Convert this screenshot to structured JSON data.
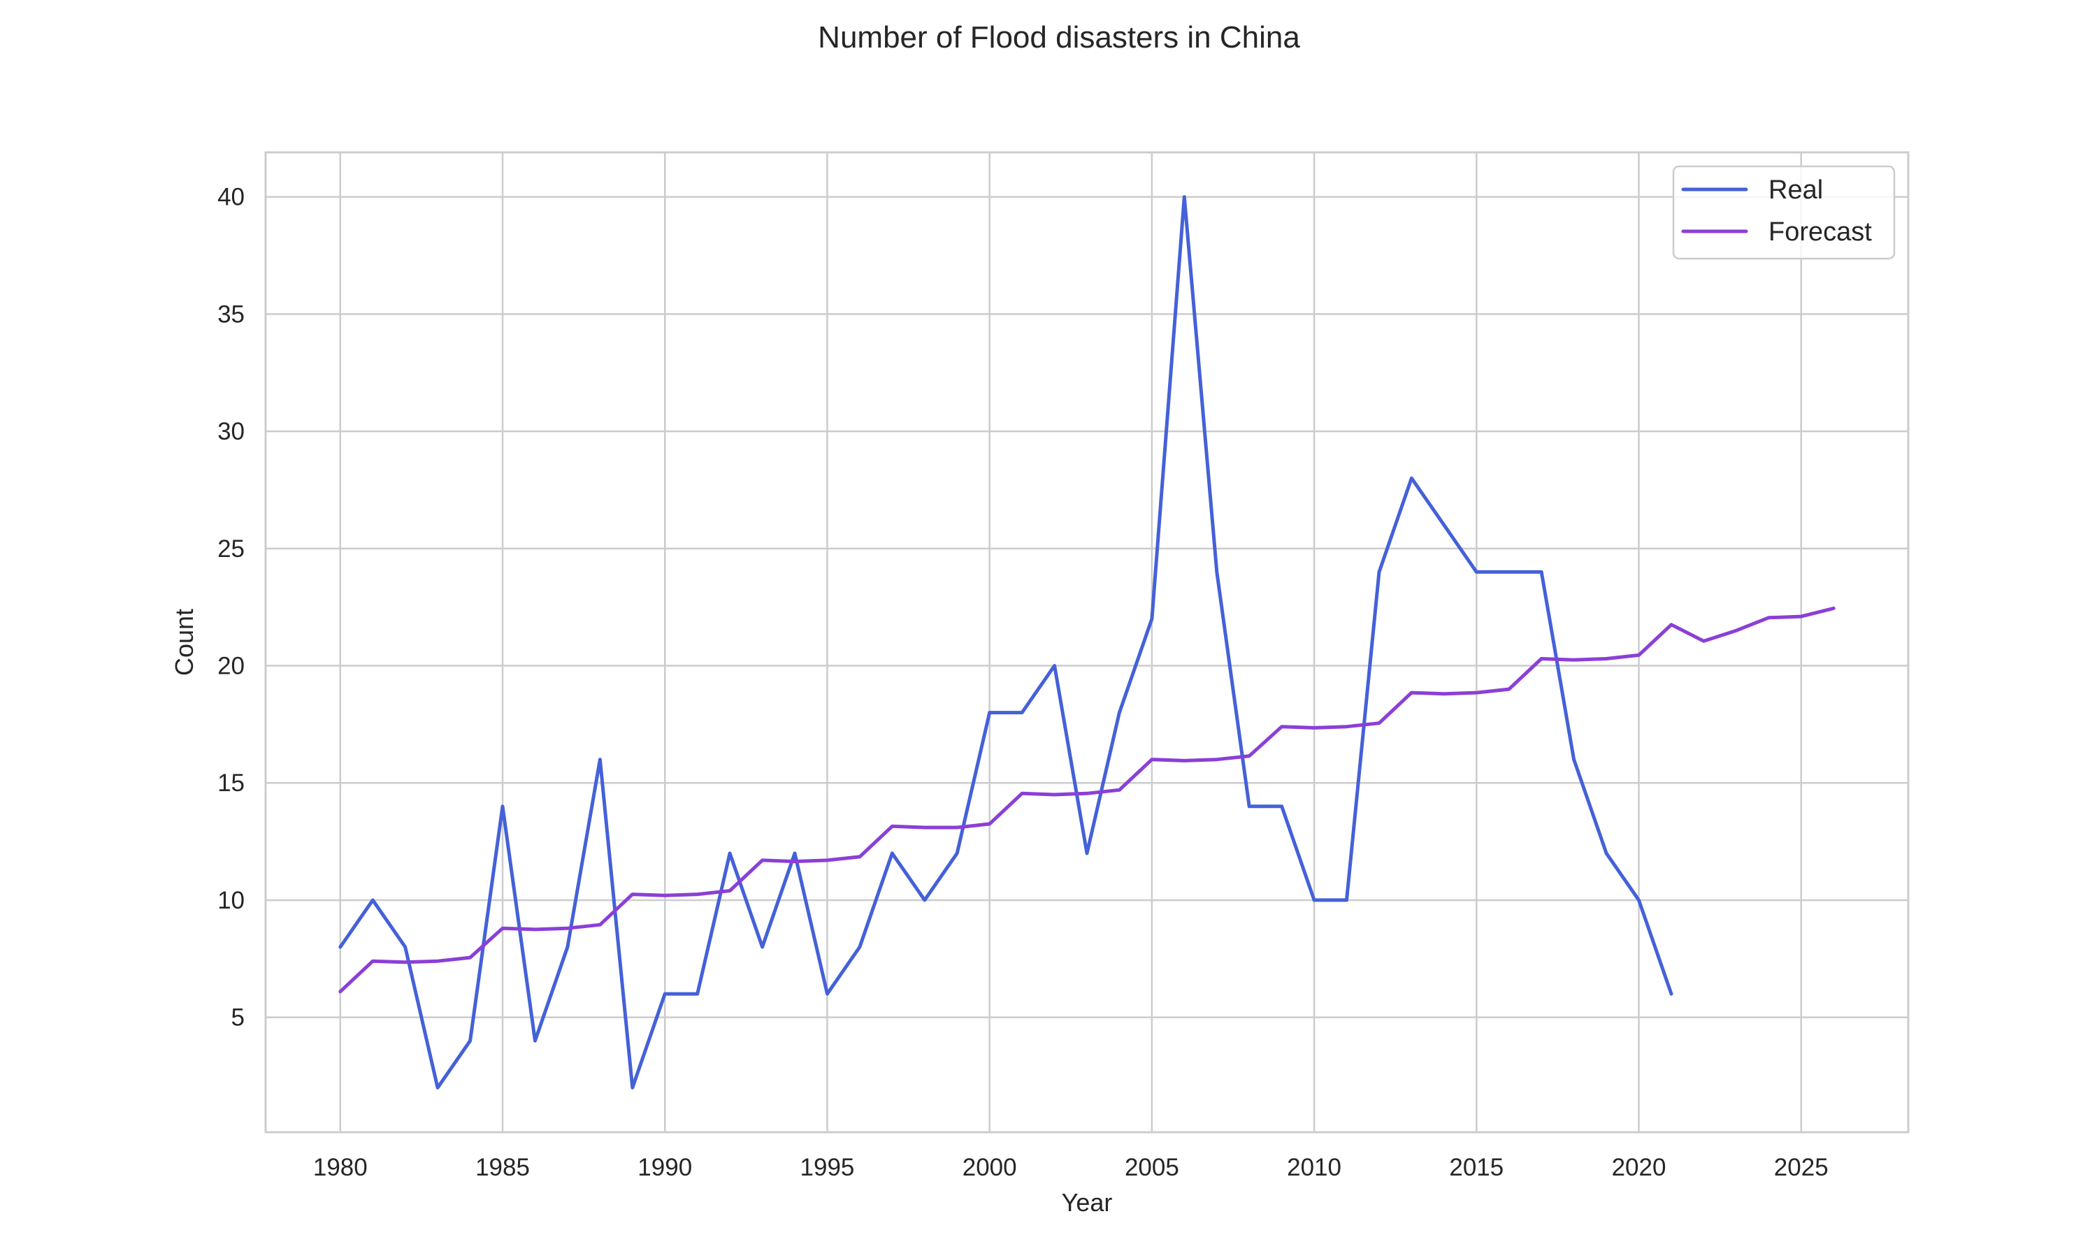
{
  "chart_data": {
    "type": "line",
    "title": "Number of Flood disasters in China",
    "xlabel": "Year",
    "ylabel": "Count",
    "xlim": [
      1977.7,
      2028.3
    ],
    "ylim": [
      0.1,
      41.9
    ],
    "xticks": [
      1980,
      1985,
      1990,
      1995,
      2000,
      2005,
      2010,
      2015,
      2020,
      2025
    ],
    "yticks": [
      5,
      10,
      15,
      20,
      25,
      30,
      35,
      40
    ],
    "grid": true,
    "legend_position": "top-right",
    "series": [
      {
        "name": "Real",
        "color": "#4461d8",
        "x": [
          1980,
          1981,
          1982,
          1983,
          1984,
          1985,
          1986,
          1987,
          1988,
          1989,
          1990,
          1991,
          1992,
          1993,
          1994,
          1995,
          1996,
          1997,
          1998,
          1999,
          2000,
          2001,
          2002,
          2003,
          2004,
          2005,
          2006,
          2007,
          2008,
          2009,
          2010,
          2011,
          2012,
          2013,
          2014,
          2015,
          2016,
          2017,
          2018,
          2019,
          2020,
          2021
        ],
        "values": [
          8,
          10,
          8,
          2,
          4,
          14,
          4,
          8,
          16,
          2,
          6,
          6,
          12,
          8,
          12,
          6,
          8,
          12,
          10,
          12,
          18,
          18,
          20,
          12,
          18,
          22,
          40,
          24,
          14,
          14,
          10,
          10,
          24,
          28,
          26,
          24,
          24,
          24,
          16,
          12,
          10,
          6
        ]
      },
      {
        "name": "Forecast",
        "color": "#8b3fd6",
        "x": [
          1980,
          1981,
          1982,
          1983,
          1984,
          1985,
          1986,
          1987,
          1988,
          1989,
          1990,
          1991,
          1992,
          1993,
          1994,
          1995,
          1996,
          1997,
          1998,
          1999,
          2000,
          2001,
          2002,
          2003,
          2004,
          2005,
          2006,
          2007,
          2008,
          2009,
          2010,
          2011,
          2012,
          2013,
          2014,
          2015,
          2016,
          2017,
          2018,
          2019,
          2020,
          2021,
          2022,
          2023,
          2024,
          2025,
          2026
        ],
        "values": [
          6.1,
          7.4,
          7.35,
          7.4,
          7.55,
          8.8,
          8.75,
          8.8,
          8.95,
          10.25,
          10.2,
          10.25,
          10.4,
          11.7,
          11.65,
          11.7,
          11.85,
          13.15,
          13.1,
          13.1,
          13.25,
          14.55,
          14.5,
          14.55,
          14.7,
          16.0,
          15.95,
          16.0,
          16.15,
          17.4,
          17.35,
          17.4,
          17.55,
          18.85,
          18.8,
          18.85,
          19.0,
          20.3,
          20.25,
          20.3,
          20.45,
          21.75,
          21.05,
          21.5,
          22.05,
          22.1,
          22.45
        ]
      }
    ]
  }
}
